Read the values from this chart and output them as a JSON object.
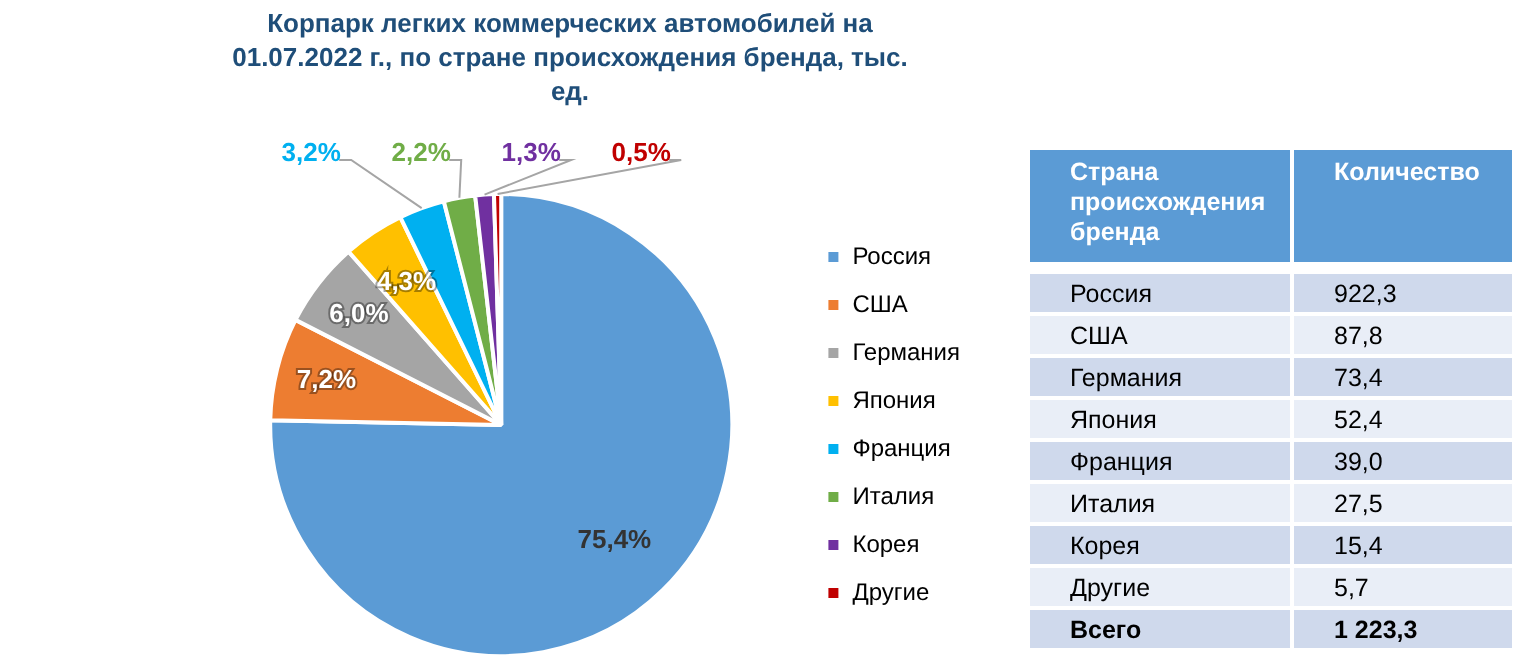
{
  "chart_data": [
    {
      "type": "pie",
      "title": "Корпарк легких коммерческих автомобилей на 01.07.2022 г., по стране происхождения бренда, тыс. ед.",
      "categories": [
        "Россия",
        "США",
        "Германия",
        "Япония",
        "Франция",
        "Италия",
        "Корея",
        "Другие"
      ],
      "values": [
        75.4,
        7.2,
        6.0,
        4.3,
        3.2,
        2.2,
        1.3,
        0.5
      ],
      "value_labels": [
        "75,4%",
        "7,2%",
        "6,0%",
        "4,3%",
        "3,2%",
        "2,2%",
        "1,3%",
        "0,5%"
      ],
      "colors": [
        "#5b9bd5",
        "#ed7d31",
        "#a5a5a5",
        "#ffc000",
        "#00b0f0",
        "#70ad47",
        "#7030a0",
        "#c00000"
      ],
      "legend": "right"
    },
    {
      "type": "other",
      "annotations": [
        "Страна происхождения бренда",
        "Количество"
      ],
      "categories": [
        "Россия",
        "США",
        "Германия",
        "Япония",
        "Франция",
        "Италия",
        "Корея",
        "Другие",
        "Всего"
      ],
      "value_labels": [
        "922,3",
        "87,8",
        "73,4",
        "52,4",
        "39,0",
        "27,5",
        "15,4",
        "5,7",
        "1 223,3"
      ]
    }
  ]
}
